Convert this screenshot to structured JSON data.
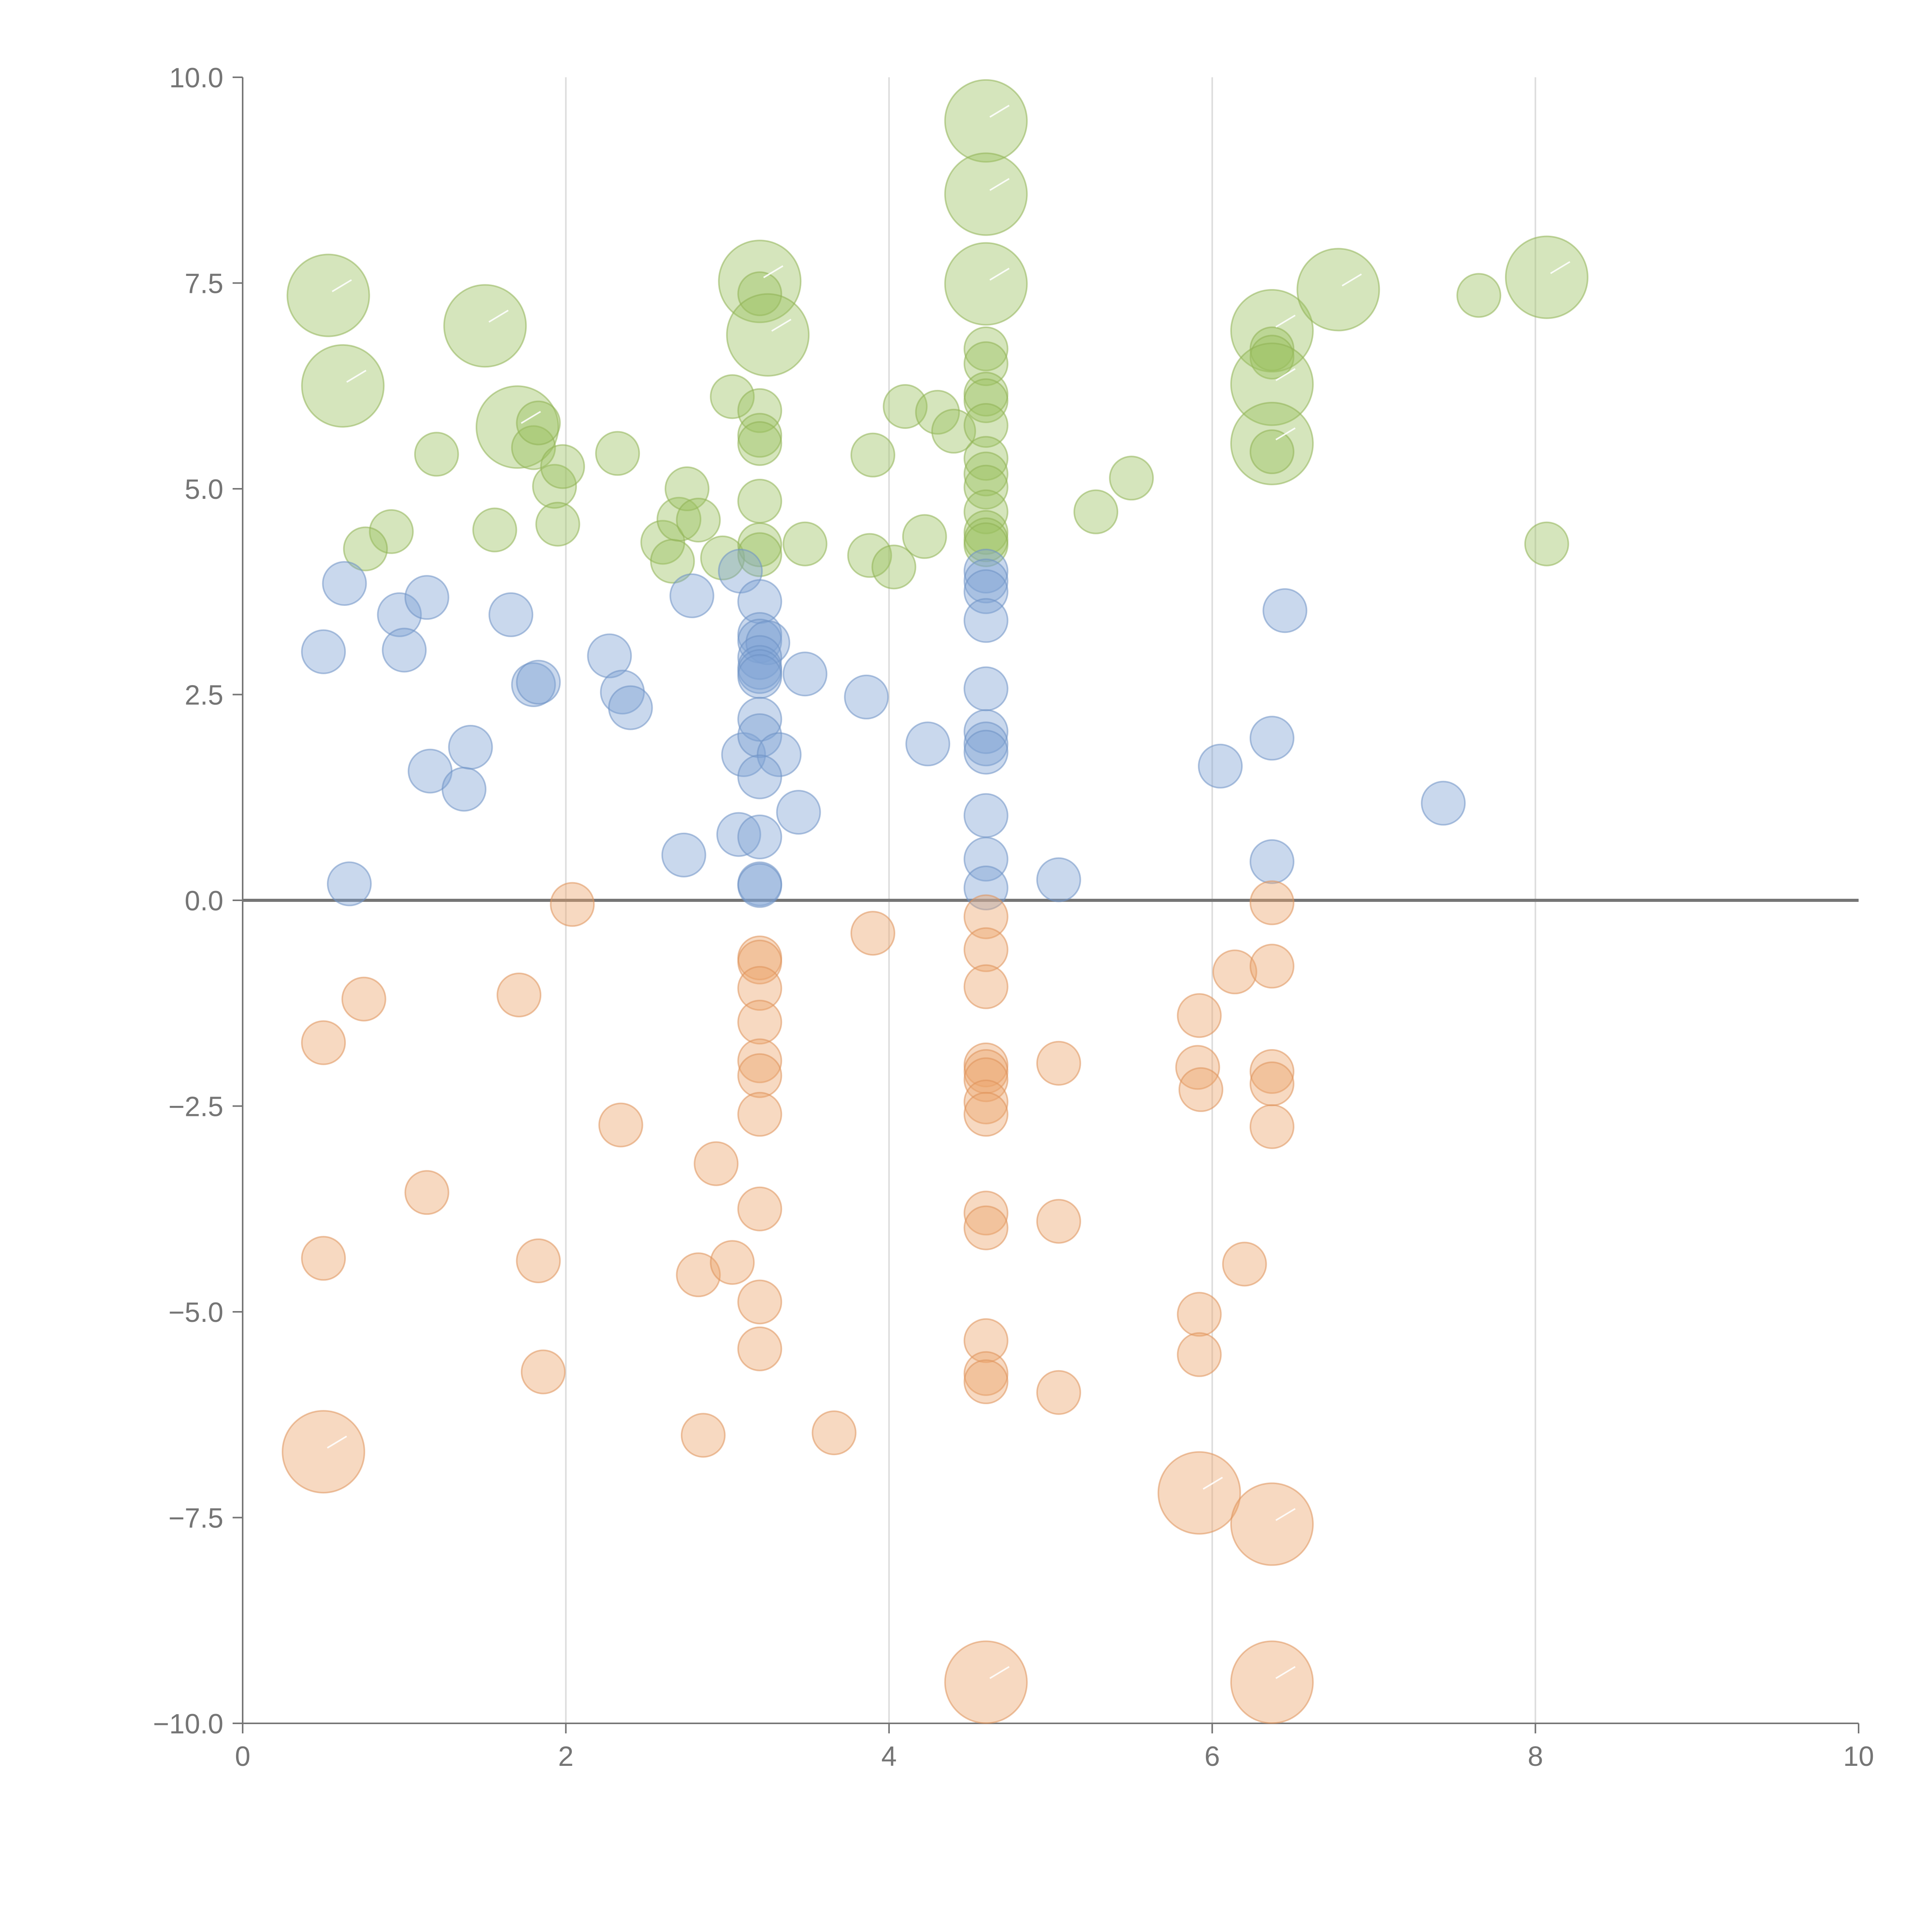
{
  "chart_data": {
    "type": "scatter",
    "subtype": "bubble",
    "title": "",
    "xlabel": "",
    "ylabel": "",
    "xlim": [
      0,
      10
    ],
    "ylim": [
      -10,
      10
    ],
    "x_ticks": [
      0,
      2,
      4,
      6,
      8,
      10
    ],
    "x_tick_labels": [
      "0",
      "2",
      "4",
      "6",
      "8",
      "10"
    ],
    "y_ticks": [
      -10,
      -7.5,
      -5,
      -2.5,
      0,
      2.5,
      5,
      7.5,
      10
    ],
    "y_tick_labels": [
      "−10.0",
      "−7.5",
      "−5.0",
      "−2.5",
      "0.0",
      "2.5",
      "5.0",
      "7.5",
      "10.0"
    ],
    "grid": "vertical",
    "reference_line_y": 0,
    "legend": "none",
    "series": [
      {
        "name": "green",
        "color": "#9bc160",
        "stroke": "#8fb354",
        "points": [
          [
            0.53,
            7.35,
            2
          ],
          [
            0.62,
            6.25,
            2
          ],
          [
            0.92,
            4.48,
            1
          ],
          [
            0.76,
            4.27,
            1
          ],
          [
            1.2,
            5.42,
            1
          ],
          [
            1.5,
            6.98,
            2
          ],
          [
            1.56,
            4.5,
            1
          ],
          [
            1.7,
            5.75,
            2
          ],
          [
            1.8,
            5.5,
            1
          ],
          [
            1.83,
            5.8,
            1
          ],
          [
            1.93,
            5.03,
            1
          ],
          [
            1.95,
            4.57,
            1
          ],
          [
            1.98,
            5.27,
            1
          ],
          [
            2.32,
            5.43,
            1
          ],
          [
            2.6,
            4.35,
            1
          ],
          [
            2.66,
            4.12,
            1
          ],
          [
            2.7,
            4.63,
            1
          ],
          [
            2.75,
            5.0,
            1
          ],
          [
            2.82,
            4.62,
            1
          ],
          [
            2.97,
            4.16,
            1
          ],
          [
            3.03,
            6.12,
            1
          ],
          [
            3.2,
            7.52,
            2
          ],
          [
            3.2,
            7.37,
            1
          ],
          [
            3.2,
            5.95,
            1
          ],
          [
            3.2,
            5.65,
            1
          ],
          [
            3.2,
            5.55,
            1
          ],
          [
            3.2,
            4.85,
            1
          ],
          [
            3.2,
            4.32,
            1
          ],
          [
            3.2,
            4.2,
            1
          ],
          [
            3.25,
            6.87,
            2
          ],
          [
            3.48,
            4.33,
            1
          ],
          [
            3.88,
            4.19,
            1
          ],
          [
            3.9,
            5.41,
            1
          ],
          [
            4.03,
            4.05,
            1
          ],
          [
            4.1,
            6.0,
            1
          ],
          [
            4.22,
            4.42,
            1
          ],
          [
            4.3,
            5.93,
            1
          ],
          [
            4.4,
            5.7,
            1
          ],
          [
            4.6,
            9.47,
            2
          ],
          [
            4.6,
            8.58,
            2
          ],
          [
            4.6,
            7.49,
            2
          ],
          [
            4.6,
            6.7,
            1
          ],
          [
            4.6,
            6.52,
            1
          ],
          [
            4.6,
            6.15,
            1
          ],
          [
            4.6,
            6.07,
            1
          ],
          [
            4.6,
            5.77,
            1
          ],
          [
            4.6,
            5.37,
            1
          ],
          [
            4.6,
            5.18,
            1
          ],
          [
            4.6,
            5.02,
            1
          ],
          [
            4.6,
            4.72,
            1
          ],
          [
            4.6,
            4.47,
            1
          ],
          [
            4.6,
            4.38,
            1
          ],
          [
            4.6,
            4.32,
            1
          ],
          [
            5.28,
            4.72,
            1
          ],
          [
            5.5,
            5.13,
            1
          ],
          [
            6.37,
            6.92,
            2
          ],
          [
            6.37,
            6.7,
            1
          ],
          [
            6.37,
            6.6,
            1
          ],
          [
            6.37,
            6.27,
            2
          ],
          [
            6.37,
            5.55,
            2
          ],
          [
            6.37,
            5.45,
            1
          ],
          [
            6.78,
            7.42,
            2
          ],
          [
            7.65,
            7.35,
            1
          ],
          [
            8.07,
            7.57,
            2
          ],
          [
            8.07,
            4.33,
            1
          ]
        ]
      },
      {
        "name": "blue",
        "color": "#7ea3d4",
        "stroke": "#6d92c4",
        "points": [
          [
            0.5,
            3.02,
            1
          ],
          [
            0.63,
            3.85,
            1
          ],
          [
            0.66,
            0.2,
            1
          ],
          [
            0.97,
            3.47,
            1
          ],
          [
            1.0,
            3.04,
            1
          ],
          [
            1.14,
            3.68,
            1
          ],
          [
            1.16,
            1.57,
            1
          ],
          [
            1.37,
            1.35,
            1
          ],
          [
            1.41,
            1.86,
            1
          ],
          [
            1.66,
            3.47,
            1
          ],
          [
            1.8,
            2.62,
            1
          ],
          [
            1.83,
            2.65,
            1
          ],
          [
            2.27,
            2.97,
            1
          ],
          [
            2.35,
            2.53,
            1
          ],
          [
            2.4,
            2.34,
            1
          ],
          [
            2.73,
            0.55,
            1
          ],
          [
            2.78,
            3.7,
            1
          ],
          [
            3.08,
            4.0,
            1
          ],
          [
            3.1,
            1.77,
            1
          ],
          [
            3.07,
            0.8,
            1
          ],
          [
            3.2,
            3.63,
            1
          ],
          [
            3.2,
            3.23,
            1
          ],
          [
            3.2,
            3.15,
            1
          ],
          [
            3.25,
            3.13,
            1
          ],
          [
            3.2,
            2.95,
            1
          ],
          [
            3.2,
            2.83,
            1
          ],
          [
            3.2,
            2.78,
            1
          ],
          [
            3.2,
            2.72,
            1
          ],
          [
            3.2,
            2.2,
            1
          ],
          [
            3.2,
            2.0,
            1
          ],
          [
            3.32,
            1.77,
            1
          ],
          [
            3.2,
            1.5,
            1
          ],
          [
            3.2,
            0.77,
            1
          ],
          [
            3.2,
            0.2,
            1
          ],
          [
            3.2,
            0.18,
            1
          ],
          [
            3.44,
            1.07,
            1
          ],
          [
            3.48,
            2.75,
            1
          ],
          [
            3.86,
            2.47,
            1
          ],
          [
            4.24,
            1.9,
            1
          ],
          [
            4.6,
            4.0,
            1
          ],
          [
            4.6,
            3.88,
            1
          ],
          [
            4.6,
            3.75,
            1
          ],
          [
            4.6,
            3.4,
            1
          ],
          [
            4.6,
            2.57,
            1
          ],
          [
            4.6,
            2.05,
            1
          ],
          [
            4.6,
            1.9,
            1
          ],
          [
            4.6,
            1.8,
            1
          ],
          [
            4.6,
            1.03,
            1
          ],
          [
            4.6,
            0.5,
            1
          ],
          [
            4.6,
            0.15,
            1
          ],
          [
            5.05,
            0.25,
            1
          ],
          [
            6.05,
            1.63,
            1
          ],
          [
            6.37,
            1.97,
            1
          ],
          [
            6.37,
            0.47,
            1
          ],
          [
            6.45,
            3.52,
            1
          ],
          [
            7.43,
            1.18,
            1
          ]
        ]
      },
      {
        "name": "orange",
        "color": "#eba46c",
        "stroke": "#de9159",
        "points": [
          [
            0.5,
            -1.73,
            1
          ],
          [
            0.5,
            -4.35,
            1
          ],
          [
            0.5,
            -6.7,
            2
          ],
          [
            0.75,
            -1.2,
            1
          ],
          [
            1.14,
            -3.55,
            1
          ],
          [
            1.71,
            -1.15,
            1
          ],
          [
            1.83,
            -4.38,
            1
          ],
          [
            1.86,
            -5.73,
            1
          ],
          [
            2.04,
            -0.05,
            1
          ],
          [
            2.34,
            -2.73,
            1
          ],
          [
            2.82,
            -4.55,
            1
          ],
          [
            2.85,
            -6.5,
            1
          ],
          [
            2.93,
            -3.2,
            1
          ],
          [
            3.03,
            -4.4,
            1
          ],
          [
            3.2,
            -0.7,
            1
          ],
          [
            3.2,
            -0.75,
            1
          ],
          [
            3.2,
            -1.07,
            1
          ],
          [
            3.2,
            -1.48,
            1
          ],
          [
            3.2,
            -1.95,
            1
          ],
          [
            3.2,
            -2.13,
            1
          ],
          [
            3.2,
            -2.6,
            1
          ],
          [
            3.2,
            -3.75,
            1
          ],
          [
            3.2,
            -4.88,
            1
          ],
          [
            3.2,
            -5.45,
            1
          ],
          [
            3.66,
            -6.47,
            1
          ],
          [
            3.9,
            -0.4,
            1
          ],
          [
            4.6,
            -0.2,
            1
          ],
          [
            4.6,
            -0.6,
            1
          ],
          [
            4.6,
            -1.05,
            1
          ],
          [
            4.6,
            -2.0,
            1
          ],
          [
            4.6,
            -2.08,
            1
          ],
          [
            4.6,
            -2.18,
            1
          ],
          [
            4.6,
            -2.45,
            1
          ],
          [
            4.6,
            -2.6,
            1
          ],
          [
            4.6,
            -3.8,
            1
          ],
          [
            4.6,
            -3.98,
            1
          ],
          [
            4.6,
            -5.35,
            1
          ],
          [
            4.6,
            -5.75,
            1
          ],
          [
            4.6,
            -5.85,
            1
          ],
          [
            4.6,
            -9.5,
            2
          ],
          [
            5.05,
            -1.98,
            1
          ],
          [
            5.05,
            -3.9,
            1
          ],
          [
            5.05,
            -5.98,
            1
          ],
          [
            5.91,
            -2.03,
            1
          ],
          [
            5.93,
            -2.3,
            1
          ],
          [
            5.92,
            -1.4,
            1
          ],
          [
            5.92,
            -5.03,
            1
          ],
          [
            5.92,
            -5.52,
            1
          ],
          [
            5.92,
            -7.2,
            2
          ],
          [
            6.14,
            -0.87,
            1
          ],
          [
            6.2,
            -4.42,
            1
          ],
          [
            6.37,
            -0.03,
            1
          ],
          [
            6.37,
            -0.8,
            1
          ],
          [
            6.37,
            -2.08,
            1
          ],
          [
            6.37,
            -2.23,
            1
          ],
          [
            6.37,
            -2.75,
            1
          ],
          [
            6.37,
            -7.58,
            2
          ],
          [
            6.37,
            -9.5,
            2
          ]
        ]
      }
    ]
  }
}
